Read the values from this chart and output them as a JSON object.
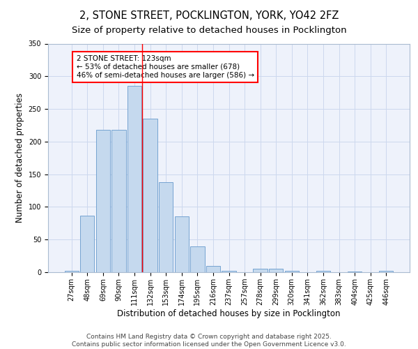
{
  "title_line1": "2, STONE STREET, POCKLINGTON, YORK, YO42 2FZ",
  "title_line2": "Size of property relative to detached houses in Pocklington",
  "xlabel": "Distribution of detached houses by size in Pocklington",
  "ylabel": "Number of detached properties",
  "bar_color": "#c5d9ee",
  "bar_edge_color": "#6699cc",
  "background_color": "#eef2fb",
  "grid_color": "#ccd8ee",
  "categories": [
    "27sqm",
    "48sqm",
    "69sqm",
    "90sqm",
    "111sqm",
    "132sqm",
    "153sqm",
    "174sqm",
    "195sqm",
    "216sqm",
    "237sqm",
    "257sqm",
    "278sqm",
    "299sqm",
    "320sqm",
    "341sqm",
    "362sqm",
    "383sqm",
    "404sqm",
    "425sqm",
    "446sqm"
  ],
  "values": [
    2,
    87,
    218,
    218,
    285,
    235,
    138,
    85,
    40,
    10,
    2,
    0,
    5,
    5,
    2,
    0,
    2,
    0,
    1,
    0,
    2
  ],
  "red_line_x": 4.5,
  "annotation_text": "2 STONE STREET: 123sqm\n← 53% of detached houses are smaller (678)\n46% of semi-detached houses are larger (586) →",
  "annotation_box_color": "white",
  "annotation_box_edge_color": "red",
  "ylim": [
    0,
    350
  ],
  "yticks": [
    0,
    50,
    100,
    150,
    200,
    250,
    300,
    350
  ],
  "footer_line1": "Contains HM Land Registry data © Crown copyright and database right 2025.",
  "footer_line2": "Contains public sector information licensed under the Open Government Licence v3.0.",
  "title_fontsize": 10.5,
  "subtitle_fontsize": 9.5,
  "axis_label_fontsize": 8.5,
  "tick_fontsize": 7,
  "annotation_fontsize": 7.5,
  "footer_fontsize": 6.5
}
